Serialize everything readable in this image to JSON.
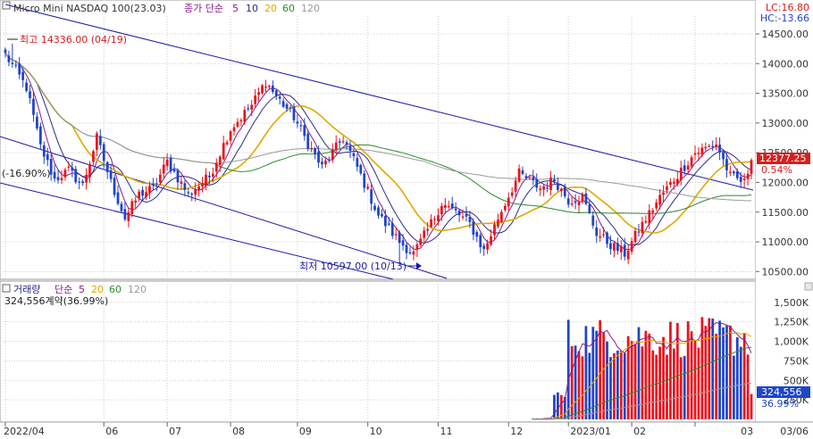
{
  "colors": {
    "up": "#e8141e",
    "down": "#1f45c8",
    "ma5": "#8a1a8a",
    "ma10": "#2a2a8a",
    "ma20": "#e0a800",
    "ma60": "#2e8b2e",
    "ma120": "#9a9a9a",
    "channel": "#1a1aa8",
    "grid": "#cfcfcf",
    "axis_bg": "#ffffff",
    "badge": "#d42020"
  },
  "price_panel": {
    "instrument": "Micro Mini NASDAQ 100(23.03)",
    "ma_legend": {
      "prefix": "종가 단순",
      "p5": "5",
      "p10": "10",
      "p20": "20",
      "p60": "60",
      "p120": "120"
    },
    "lc": "LC:16.80",
    "hc": "HC:-13.66",
    "high_label": "최고 14336.00 (04/19)",
    "low_label": "최저 10597.00 (10/13)",
    "drawdown_label": "(-16.90%)",
    "last_price": "12377.25",
    "last_change": "0.54%"
  },
  "volume_panel": {
    "title": "거래량",
    "ma_legend": {
      "prefix": "단순",
      "p5": "5",
      "p20": "20",
      "p60": "60",
      "p120": "120"
    },
    "current_volume": "324,556계약(36.99%)",
    "last_volume": "324,556",
    "last_ratio": "36.99%"
  },
  "chart_data": [
    {
      "type": "candlestick",
      "title": "Micro Mini NASDAQ 100(23.03)",
      "x_tick_labels": [
        "2022/04",
        "06",
        "07",
        "08",
        "09",
        "10",
        "11",
        "12",
        "2023/01",
        "02",
        "03",
        "03/06"
      ],
      "y_tick_labels": [
        "14500.00",
        "14000.00",
        "13500.00",
        "13000.00",
        "12500.00",
        "12000.00",
        "11500.00",
        "11000.00",
        "10500.00"
      ],
      "ylim": [
        10400,
        14800
      ],
      "moving_averages": [
        "5",
        "10",
        "20",
        "60",
        "120"
      ],
      "close_anchors": [
        [
          0,
          14150
        ],
        [
          6,
          13600
        ],
        [
          10,
          12600
        ],
        [
          14,
          12050
        ],
        [
          18,
          12200
        ],
        [
          22,
          11950
        ],
        [
          26,
          12750
        ],
        [
          30,
          12000
        ],
        [
          34,
          11400
        ],
        [
          38,
          11800
        ],
        [
          42,
          11900
        ],
        [
          46,
          12350
        ],
        [
          52,
          11800
        ],
        [
          58,
          12100
        ],
        [
          64,
          12900
        ],
        [
          70,
          13300
        ],
        [
          74,
          13700
        ],
        [
          77,
          13450
        ],
        [
          82,
          13100
        ],
        [
          86,
          12650
        ],
        [
          90,
          12250
        ],
        [
          96,
          12750
        ],
        [
          100,
          12250
        ],
        [
          106,
          11450
        ],
        [
          112,
          11000
        ],
        [
          116,
          10800
        ],
        [
          120,
          11200
        ],
        [
          124,
          11650
        ],
        [
          128,
          11500
        ],
        [
          132,
          11300
        ],
        [
          136,
          10850
        ],
        [
          140,
          11400
        ],
        [
          146,
          12150
        ],
        [
          152,
          11900
        ],
        [
          156,
          12050
        ],
        [
          160,
          11700
        ],
        [
          164,
          11750
        ],
        [
          168,
          11150
        ],
        [
          172,
          10950
        ],
        [
          176,
          10800
        ],
        [
          180,
          11200
        ],
        [
          186,
          11750
        ],
        [
          190,
          12050
        ],
        [
          196,
          12500
        ],
        [
          202,
          12650
        ],
        [
          206,
          12100
        ],
        [
          210,
          12000
        ],
        [
          212,
          12377
        ]
      ],
      "high": {
        "value": 14336,
        "date": "04/19"
      },
      "low": {
        "value": 10597,
        "date": "10/13"
      },
      "last_close": 12377.25
    },
    {
      "type": "bar",
      "title": "거래량",
      "y_tick_labels": [
        "1,500K",
        "1,250K",
        "1,000K",
        "750K",
        "500K",
        "250K"
      ],
      "ylim": [
        0,
        1600000
      ],
      "moving_averages": [
        "5",
        "20",
        "60",
        "120"
      ],
      "volume_profile": [
        {
          "from_bar": 0,
          "to_bar": 149,
          "value": 0
        },
        {
          "from_bar": 150,
          "to_bar": 155,
          "value": 12000
        },
        {
          "from_bar": 156,
          "to_bar": 159,
          "value": 300000
        },
        {
          "from_bar": 160,
          "to_bar": 212,
          "value": 1050000
        }
      ],
      "last_volume": 324556
    }
  ]
}
